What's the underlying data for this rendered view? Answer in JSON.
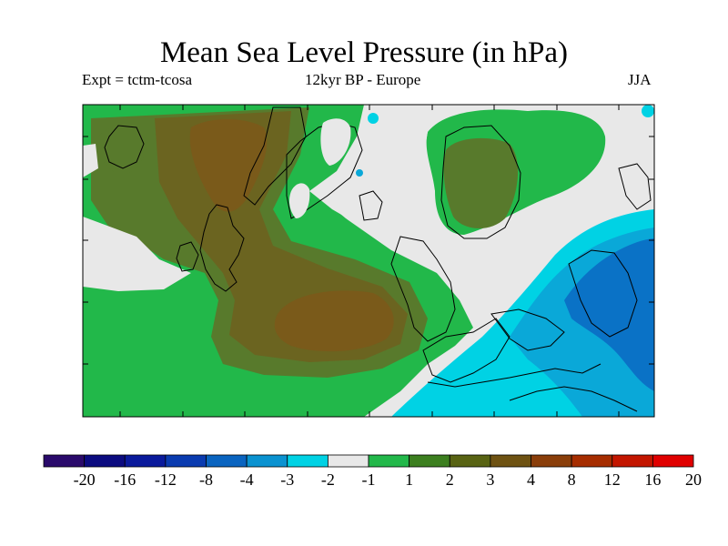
{
  "header": {
    "title": "Mean Sea Level Pressure (in hPa)",
    "experiment": "Expt = tctm-tcosa",
    "period": "12kyr BP - Europe",
    "season": "JJA"
  },
  "legend": {
    "colors": [
      "#2a0a6b",
      "#0b0b80",
      "#0a1a9c",
      "#0a3bb0",
      "#0a64c0",
      "#0a92d0",
      "#00d2e4",
      "#e8e8e8",
      "#22b84a",
      "#3c7f1f",
      "#586313",
      "#6e5212",
      "#8a3e0a",
      "#a62d00",
      "#c31600",
      "#e00000"
    ],
    "labels": [
      "-20",
      "-16",
      "-12",
      "-8",
      "-4",
      "-3",
      "-2",
      "-1",
      "1",
      "2",
      "3",
      "4",
      "8",
      "12",
      "16",
      "20"
    ]
  },
  "map": {
    "colors": {
      "neutral": "#e8e8e8",
      "green": "#22b84a",
      "olive": "#587a2c",
      "brown": "#6b6420",
      "dark_brown": "#7a5a1a",
      "cyan": "#00d2e4",
      "light_blue": "#0aa8d8",
      "blue": "#0a72c6"
    }
  }
}
